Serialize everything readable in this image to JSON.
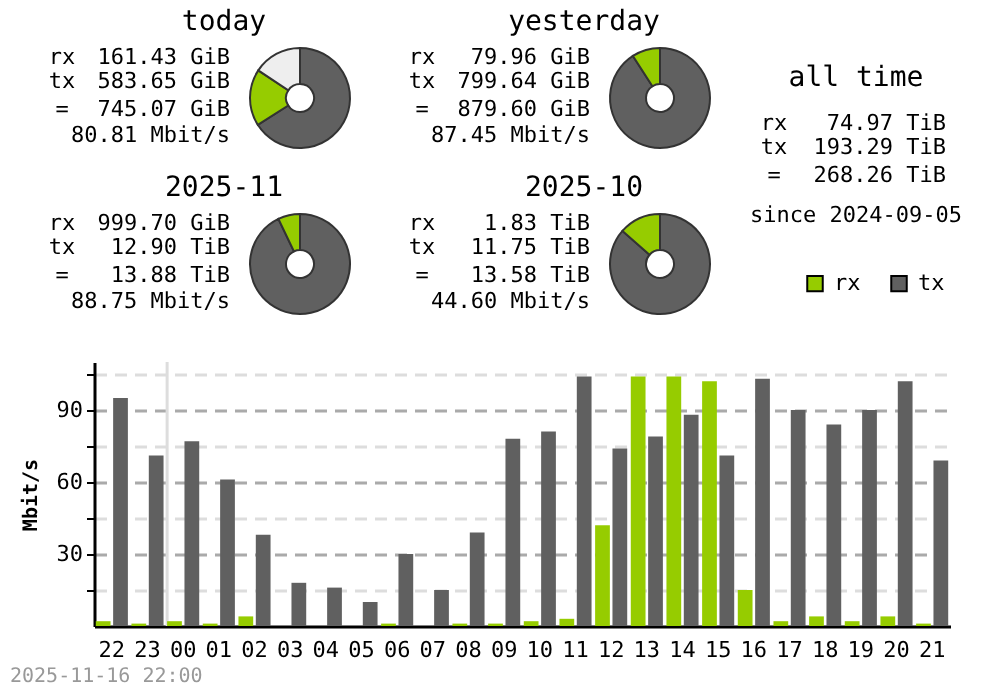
{
  "chart_data": [
    {
      "type": "donut",
      "title": "today",
      "categories": [
        null,
        null,
        null
      ],
      "values": [
        66,
        18.3,
        15.7
      ],
      "colors": [
        "#606060",
        "#96cc00",
        "#eeeeee"
      ],
      "annotations": [
        "rx",
        "161.43 GiB",
        "tx",
        "583.65 GiB",
        "=",
        "745.07 GiB",
        "80.81 Mbit/s"
      ]
    },
    {
      "type": "donut",
      "title": "yesterday",
      "categories": [
        null,
        null
      ],
      "values": [
        90.9,
        9.1
      ],
      "colors": [
        "#606060",
        "#96cc00"
      ],
      "annotations": [
        "rx",
        "79.96 GiB",
        "tx",
        "799.64 GiB",
        "=",
        "879.60 GiB",
        "87.45 Mbit/s"
      ]
    },
    {
      "type": "other",
      "title": "all time",
      "annotations": [
        "rx",
        "74.97 TiB",
        "tx",
        "193.29 TiB",
        "=",
        "268.26 TiB",
        "since 2024-09-05"
      ]
    },
    {
      "type": "donut",
      "title": "2025-11",
      "categories": [
        null,
        null
      ],
      "values": [
        92.9,
        7.1
      ],
      "colors": [
        "#606060",
        "#96cc00"
      ],
      "annotations": [
        "rx",
        "999.70 GiB",
        "tx",
        "12.90 TiB",
        "=",
        "13.88 TiB",
        "88.75 Mbit/s"
      ]
    },
    {
      "type": "donut",
      "title": "2025-10",
      "categories": [
        null,
        null
      ],
      "values": [
        86.5,
        13.5
      ],
      "colors": [
        "#606060",
        "#96cc00"
      ],
      "annotations": [
        "rx",
        "1.83 TiB",
        "tx",
        "11.75 TiB",
        "=",
        "13.58 TiB",
        "44.60 Mbit/s"
      ]
    },
    {
      "type": "bar",
      "ylabel": "Mbit/s",
      "legend": "top right",
      "grid": "y",
      "categories": [
        "22",
        "23",
        "00",
        "01",
        "02",
        "03",
        "04",
        "05",
        "06",
        "07",
        "08",
        "09",
        "10",
        "11",
        "12",
        "13",
        "14",
        "15",
        "16",
        "17",
        "18",
        "19",
        "20",
        "21"
      ],
      "series": [
        {
          "name": "rx",
          "color": "#96cc00",
          "values": [
            2,
            1,
            2,
            1,
            4,
            0,
            0,
            0,
            1,
            0,
            1,
            1,
            2,
            3,
            42,
            104,
            104,
            102,
            15,
            2,
            4,
            2,
            4,
            1
          ]
        },
        {
          "name": "tx",
          "color": "#606060",
          "values": [
            95,
            71,
            77,
            61,
            38,
            18,
            16,
            10,
            30,
            15,
            39,
            78,
            81,
            104,
            74,
            79,
            88,
            71,
            103,
            90,
            84,
            90,
            102,
            69
          ]
        }
      ],
      "ylim": [
        0,
        110
      ],
      "yticks": [
        {
          "value": 15,
          "label": null
        },
        30,
        {
          "value": 45,
          "label": null
        },
        60,
        {
          "value": 75,
          "label": null
        },
        90,
        {
          "value": 105,
          "label": null
        }
      ],
      "ref_lines": [
        {
          "axis": "x",
          "value": "00",
          "color": "#dddddd"
        }
      ],
      "annotations": [
        "2025-11-16 22:00"
      ]
    }
  ]
}
